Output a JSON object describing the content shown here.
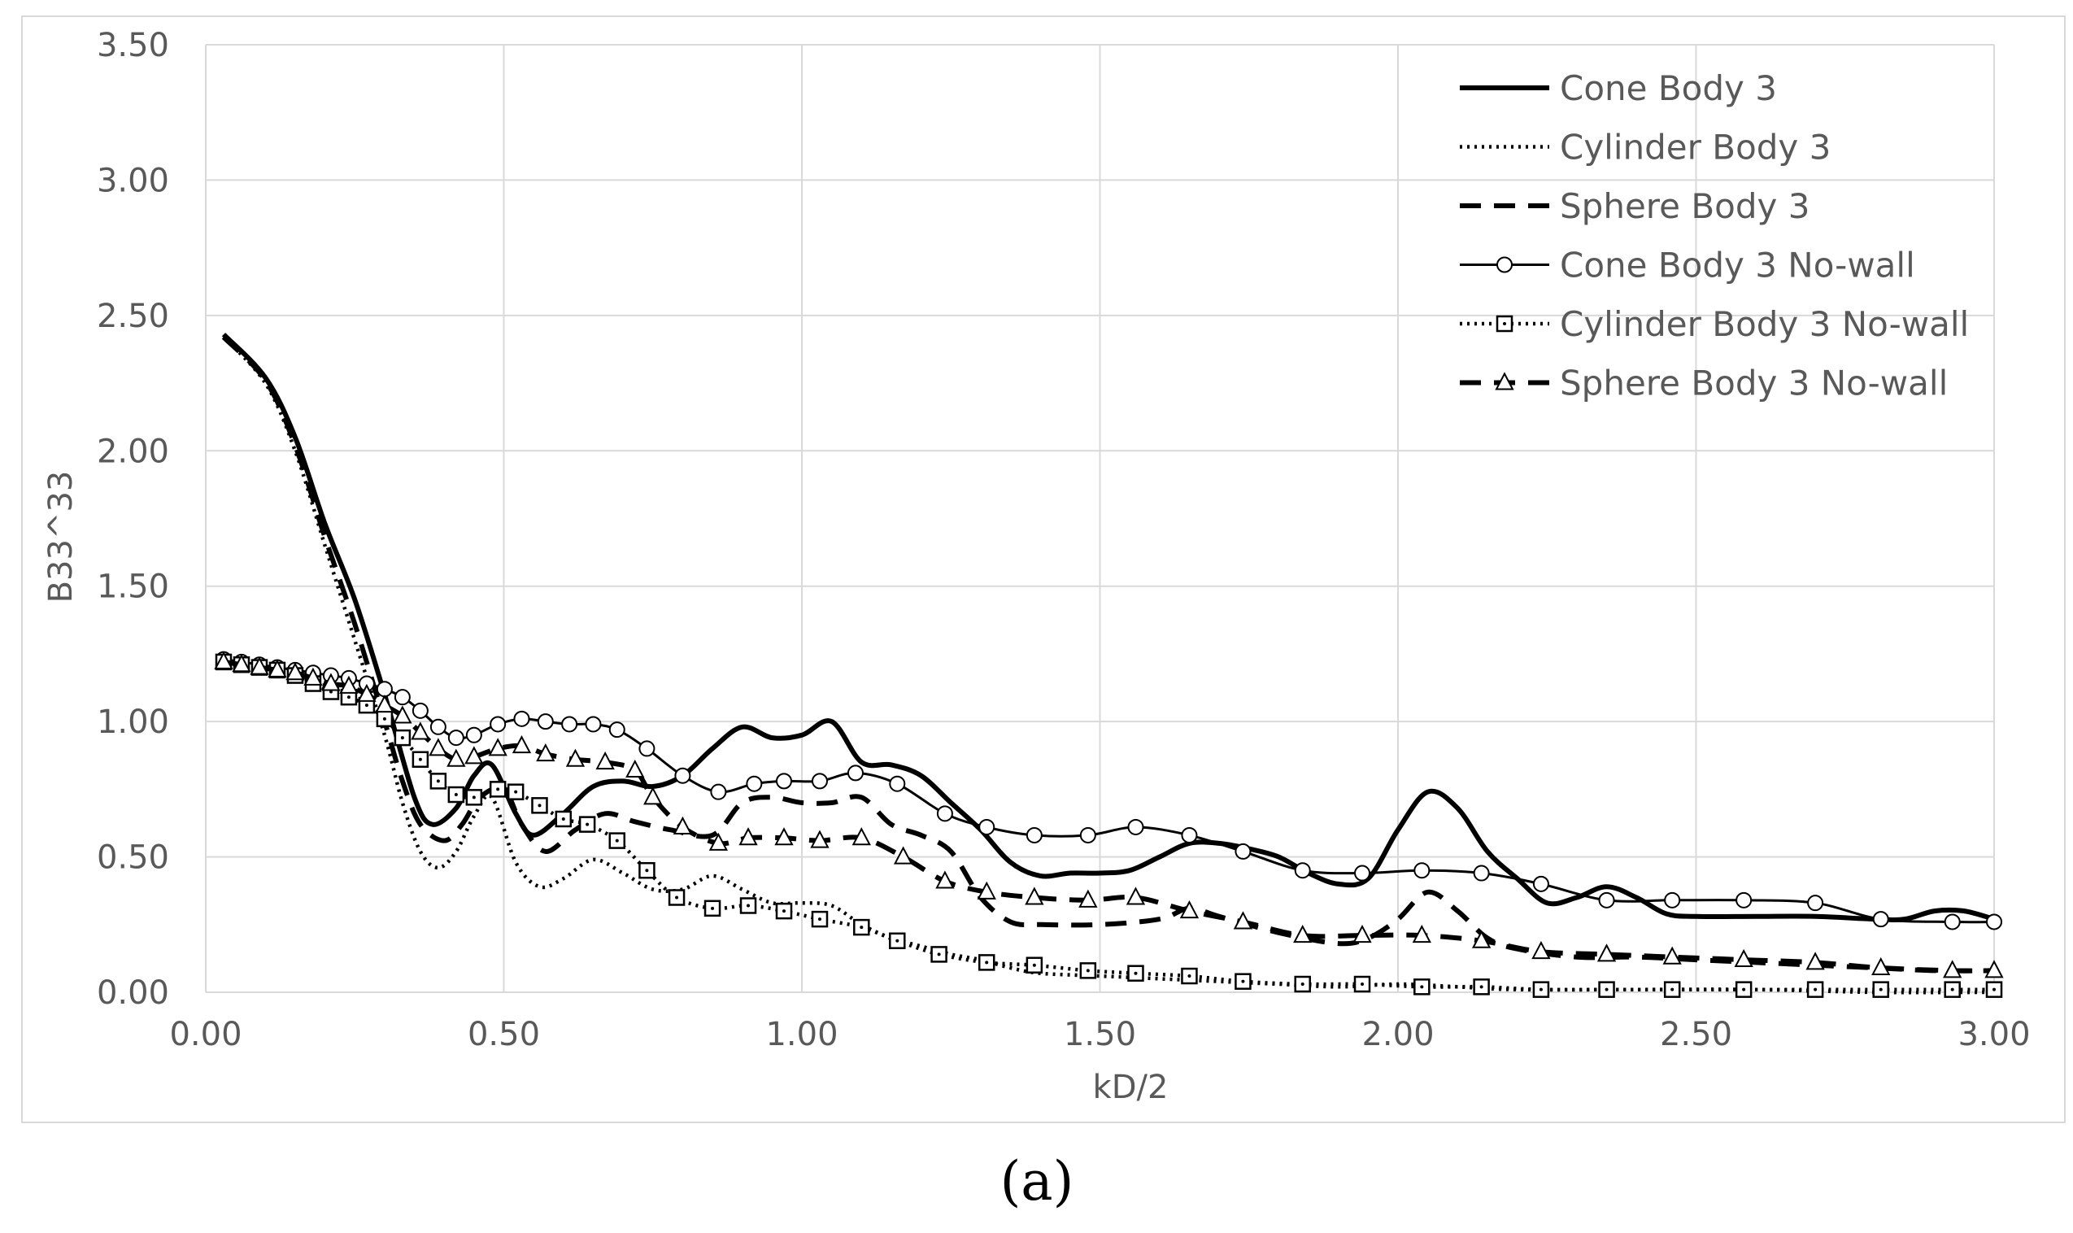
{
  "chart_data": {
    "type": "line",
    "title": "",
    "xlabel": "kD/2",
    "ylabel": "B33^33",
    "xlim": [
      0,
      3
    ],
    "ylim": [
      0,
      3.5
    ],
    "x_ticks": [
      "0.00",
      "0.50",
      "1.00",
      "1.50",
      "2.00",
      "2.50",
      "3.00"
    ],
    "y_ticks": [
      "0.00",
      "0.50",
      "1.00",
      "1.50",
      "2.00",
      "2.50",
      "3.00",
      "3.50"
    ],
    "grid": true,
    "legend_position": "top-right",
    "caption": "(a)",
    "series": [
      {
        "name": "Cone Body 3",
        "style": "solid-thick",
        "x": [
          0.03,
          0.1,
          0.15,
          0.2,
          0.25,
          0.3,
          0.35,
          0.38,
          0.42,
          0.45,
          0.48,
          0.52,
          0.55,
          0.6,
          0.65,
          0.7,
          0.75,
          0.8,
          0.85,
          0.9,
          0.95,
          1.0,
          1.05,
          1.1,
          1.15,
          1.2,
          1.25,
          1.3,
          1.35,
          1.4,
          1.45,
          1.5,
          1.55,
          1.6,
          1.65,
          1.7,
          1.75,
          1.8,
          1.85,
          1.9,
          1.95,
          2.0,
          2.05,
          2.1,
          2.15,
          2.2,
          2.25,
          2.3,
          2.35,
          2.4,
          2.45,
          2.5,
          2.6,
          2.7,
          2.8,
          2.85,
          2.9,
          2.95,
          3.0
        ],
        "y": [
          2.43,
          2.27,
          2.05,
          1.73,
          1.45,
          1.1,
          0.72,
          0.62,
          0.68,
          0.8,
          0.84,
          0.66,
          0.58,
          0.66,
          0.76,
          0.78,
          0.76,
          0.8,
          0.9,
          0.98,
          0.94,
          0.95,
          1.0,
          0.85,
          0.84,
          0.8,
          0.7,
          0.6,
          0.48,
          0.43,
          0.44,
          0.44,
          0.45,
          0.5,
          0.55,
          0.55,
          0.53,
          0.5,
          0.44,
          0.4,
          0.42,
          0.6,
          0.74,
          0.68,
          0.52,
          0.42,
          0.33,
          0.35,
          0.39,
          0.35,
          0.29,
          0.28,
          0.28,
          0.28,
          0.27,
          0.27,
          0.3,
          0.3,
          0.27
        ]
      },
      {
        "name": "Cylinder Body 3",
        "style": "dotted",
        "x": [
          0.03,
          0.1,
          0.15,
          0.2,
          0.25,
          0.3,
          0.33,
          0.36,
          0.39,
          0.42,
          0.45,
          0.48,
          0.52,
          0.56,
          0.6,
          0.65,
          0.7,
          0.75,
          0.8,
          0.85,
          0.9,
          0.95,
          1.0,
          1.05,
          1.1,
          1.15,
          1.2,
          1.25,
          1.3,
          1.35,
          1.4,
          1.5,
          1.6,
          1.7,
          1.8,
          1.9,
          2.0,
          2.1,
          2.2,
          2.4,
          2.6,
          2.8,
          3.0
        ],
        "y": [
          2.42,
          2.25,
          2.0,
          1.65,
          1.3,
          0.95,
          0.7,
          0.52,
          0.46,
          0.52,
          0.65,
          0.72,
          0.48,
          0.39,
          0.42,
          0.49,
          0.44,
          0.38,
          0.38,
          0.43,
          0.38,
          0.33,
          0.33,
          0.32,
          0.25,
          0.2,
          0.17,
          0.14,
          0.12,
          0.09,
          0.07,
          0.06,
          0.05,
          0.04,
          0.03,
          0.02,
          0.03,
          0.02,
          0.01,
          0.01,
          0.01,
          0.0,
          0.0
        ]
      },
      {
        "name": "Sphere Body 3",
        "style": "dashed",
        "x": [
          0.03,
          0.1,
          0.15,
          0.2,
          0.25,
          0.3,
          0.33,
          0.36,
          0.4,
          0.43,
          0.46,
          0.5,
          0.53,
          0.57,
          0.62,
          0.67,
          0.72,
          0.78,
          0.85,
          0.9,
          0.95,
          1.0,
          1.05,
          1.1,
          1.15,
          1.2,
          1.25,
          1.3,
          1.35,
          1.4,
          1.5,
          1.6,
          1.65,
          1.7,
          1.8,
          1.9,
          1.95,
          2.0,
          2.05,
          2.1,
          2.15,
          2.2,
          2.3,
          2.4,
          2.5,
          2.6,
          2.7,
          2.8,
          2.9,
          3.0
        ],
        "y": [
          2.42,
          2.26,
          2.02,
          1.68,
          1.36,
          1.0,
          0.78,
          0.62,
          0.56,
          0.62,
          0.72,
          0.75,
          0.62,
          0.52,
          0.6,
          0.66,
          0.63,
          0.6,
          0.58,
          0.7,
          0.72,
          0.7,
          0.7,
          0.72,
          0.62,
          0.58,
          0.52,
          0.35,
          0.26,
          0.25,
          0.25,
          0.27,
          0.31,
          0.28,
          0.22,
          0.18,
          0.2,
          0.27,
          0.37,
          0.3,
          0.2,
          0.16,
          0.13,
          0.13,
          0.12,
          0.11,
          0.1,
          0.09,
          0.08,
          0.08
        ]
      },
      {
        "name": "Cone Body 3 No-wall",
        "style": "solid-circle",
        "x": [
          0.03,
          0.06,
          0.09,
          0.12,
          0.15,
          0.18,
          0.21,
          0.24,
          0.27,
          0.3,
          0.33,
          0.36,
          0.39,
          0.42,
          0.45,
          0.49,
          0.53,
          0.57,
          0.61,
          0.65,
          0.69,
          0.74,
          0.8,
          0.86,
          0.92,
          0.97,
          1.03,
          1.09,
          1.16,
          1.24,
          1.31,
          1.39,
          1.48,
          1.56,
          1.65,
          1.74,
          1.84,
          1.94,
          2.04,
          2.14,
          2.24,
          2.35,
          2.46,
          2.58,
          2.7,
          2.81,
          2.93,
          3.0
        ],
        "y": [
          1.23,
          1.22,
          1.21,
          1.2,
          1.19,
          1.18,
          1.17,
          1.16,
          1.14,
          1.12,
          1.09,
          1.04,
          0.98,
          0.94,
          0.95,
          0.99,
          1.01,
          1.0,
          0.99,
          0.99,
          0.97,
          0.9,
          0.8,
          0.74,
          0.77,
          0.78,
          0.78,
          0.81,
          0.77,
          0.66,
          0.61,
          0.58,
          0.58,
          0.61,
          0.58,
          0.52,
          0.45,
          0.44,
          0.45,
          0.44,
          0.4,
          0.34,
          0.34,
          0.34,
          0.33,
          0.27,
          0.26,
          0.26
        ]
      },
      {
        "name": "Cylinder Body 3 No-wall",
        "style": "dotted-square",
        "x": [
          0.03,
          0.06,
          0.09,
          0.12,
          0.15,
          0.18,
          0.21,
          0.24,
          0.27,
          0.3,
          0.33,
          0.36,
          0.39,
          0.42,
          0.45,
          0.49,
          0.52,
          0.56,
          0.6,
          0.64,
          0.69,
          0.74,
          0.79,
          0.85,
          0.91,
          0.97,
          1.03,
          1.1,
          1.16,
          1.23,
          1.31,
          1.39,
          1.48,
          1.56,
          1.65,
          1.74,
          1.84,
          1.94,
          2.04,
          2.14,
          2.24,
          2.35,
          2.46,
          2.58,
          2.7,
          2.81,
          2.93,
          3.0
        ],
        "y": [
          1.22,
          1.21,
          1.2,
          1.19,
          1.17,
          1.14,
          1.11,
          1.09,
          1.06,
          1.01,
          0.94,
          0.86,
          0.78,
          0.73,
          0.72,
          0.75,
          0.74,
          0.69,
          0.64,
          0.62,
          0.56,
          0.45,
          0.35,
          0.31,
          0.32,
          0.3,
          0.27,
          0.24,
          0.19,
          0.14,
          0.11,
          0.1,
          0.08,
          0.07,
          0.06,
          0.04,
          0.03,
          0.03,
          0.02,
          0.02,
          0.01,
          0.01,
          0.01,
          0.01,
          0.01,
          0.01,
          0.01,
          0.01
        ]
      },
      {
        "name": "Sphere Body 3 No-wall",
        "style": "dashed-triangle",
        "x": [
          0.03,
          0.06,
          0.09,
          0.12,
          0.15,
          0.18,
          0.21,
          0.24,
          0.27,
          0.3,
          0.33,
          0.36,
          0.39,
          0.42,
          0.45,
          0.49,
          0.53,
          0.57,
          0.62,
          0.67,
          0.72,
          0.75,
          0.8,
          0.86,
          0.91,
          0.97,
          1.03,
          1.1,
          1.17,
          1.24,
          1.31,
          1.39,
          1.48,
          1.56,
          1.65,
          1.74,
          1.84,
          1.94,
          2.04,
          2.14,
          2.24,
          2.35,
          2.46,
          2.58,
          2.7,
          2.81,
          2.93,
          3.0
        ],
        "y": [
          1.22,
          1.21,
          1.2,
          1.19,
          1.18,
          1.16,
          1.14,
          1.13,
          1.1,
          1.06,
          1.02,
          0.96,
          0.9,
          0.86,
          0.87,
          0.9,
          0.91,
          0.88,
          0.86,
          0.85,
          0.82,
          0.72,
          0.61,
          0.55,
          0.57,
          0.57,
          0.56,
          0.57,
          0.5,
          0.41,
          0.37,
          0.35,
          0.34,
          0.35,
          0.3,
          0.26,
          0.21,
          0.21,
          0.21,
          0.19,
          0.15,
          0.14,
          0.13,
          0.12,
          0.11,
          0.09,
          0.08,
          0.08
        ]
      }
    ]
  }
}
